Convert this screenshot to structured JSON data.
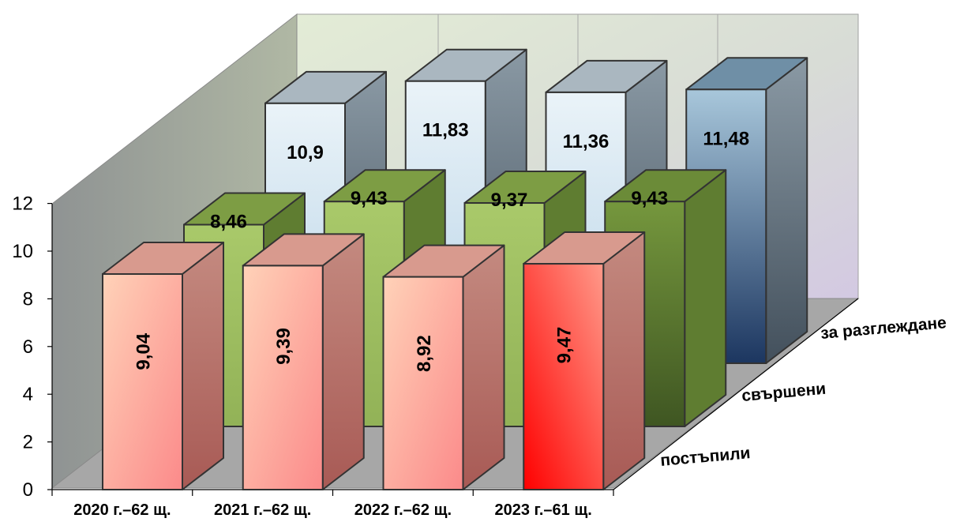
{
  "chart_data": {
    "type": "bar",
    "subtype": "3d-clustered-depth",
    "categories": [
      "2020 г.–62 щ.",
      "2021 г.–62 щ.",
      "2022 г.–62 щ.",
      "2023 г.–61 щ."
    ],
    "series": [
      {
        "name": "постъпили",
        "values": [
          9.04,
          9.39,
          8.92,
          9.47
        ],
        "labels": [
          "9,04",
          "9,39",
          "8,92",
          "9,47"
        ],
        "color": "#f4a090"
      },
      {
        "name": "свършени",
        "values": [
          8.46,
          9.43,
          9.37,
          9.43
        ],
        "labels": [
          "8,46",
          "9,43",
          "9,37",
          "9,43"
        ],
        "color": "#9bbb59"
      },
      {
        "name": "за разглеждане",
        "values": [
          10.9,
          11.83,
          11.36,
          11.48
        ],
        "labels": [
          "10,9",
          "11,83",
          "11,36",
          "11,48"
        ],
        "color": "#c6dff0"
      }
    ],
    "ylim": [
      0,
      12
    ],
    "yticks": [
      "0",
      "2",
      "4",
      "6",
      "8",
      "10",
      "12"
    ],
    "grid": false,
    "legend": "none"
  }
}
